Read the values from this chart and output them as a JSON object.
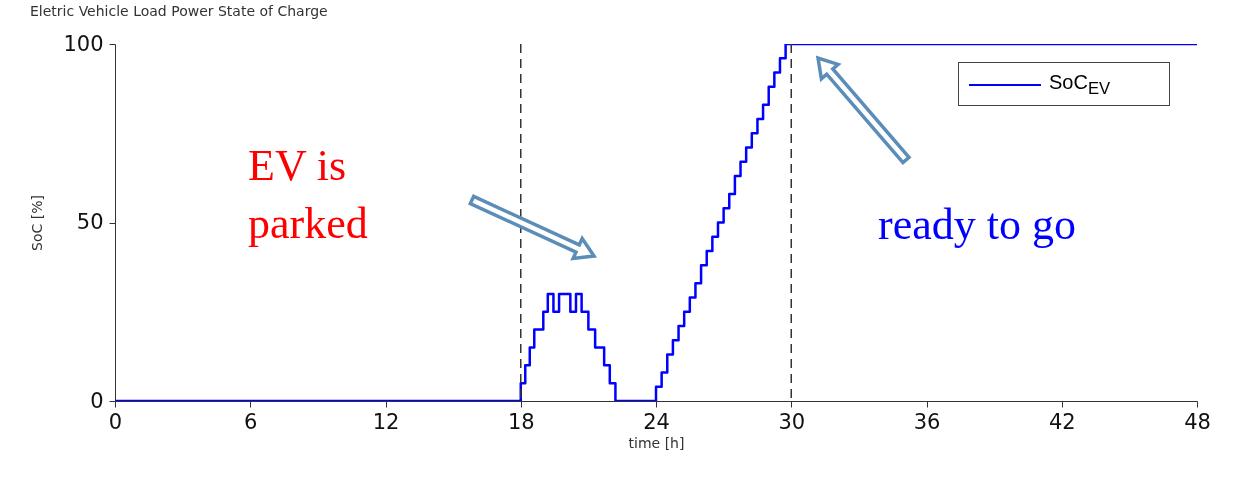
{
  "chart_data": {
    "type": "step",
    "title": "Eletric Vehicle Load Power State of Charge",
    "xlabel": "time [h]",
    "ylabel": "SoC [%]",
    "series": [
      {
        "name": "SoC$_{EV}$",
        "color": "#0000ff",
        "x": [
          0,
          18,
          18.2,
          18.4,
          18.6,
          19,
          19.2,
          19.45,
          19.7,
          20.2,
          20.45,
          20.7,
          21,
          21.3,
          21.7,
          21.95,
          22.2,
          24,
          24.25,
          24.5,
          24.75,
          25,
          25.25,
          25.5,
          25.75,
          26,
          26.25,
          26.5,
          26.75,
          27,
          27.25,
          27.5,
          27.75,
          28,
          28.25,
          28.5,
          28.75,
          29,
          29.25,
          29.5,
          29.75,
          48
        ],
        "values": [
          0,
          5,
          10,
          15,
          20,
          25,
          30,
          25,
          30,
          25,
          30,
          25,
          20,
          15,
          10,
          5,
          0,
          4,
          8,
          13,
          17,
          21,
          25,
          29,
          33,
          38,
          42,
          46,
          50,
          54,
          58,
          63,
          67,
          71,
          75,
          79,
          83,
          88,
          92,
          96,
          100,
          100
        ]
      }
    ],
    "xlim": [
      0,
      48
    ],
    "xticks": [
      0,
      6,
      12,
      18,
      24,
      30,
      36,
      42,
      48
    ],
    "ylim": [
      0,
      100
    ],
    "yticks": [
      0,
      50,
      100
    ],
    "ref_lines": [
      {
        "axis": "x",
        "value": 18,
        "line_style": "dashed",
        "color": "#333333"
      },
      {
        "axis": "x",
        "value": 30,
        "line_style": "dashed",
        "color": "#333333"
      }
    ],
    "annotations": [
      "EV is parked",
      "ready to go"
    ],
    "legend": "top right",
    "grid": false
  }
}
